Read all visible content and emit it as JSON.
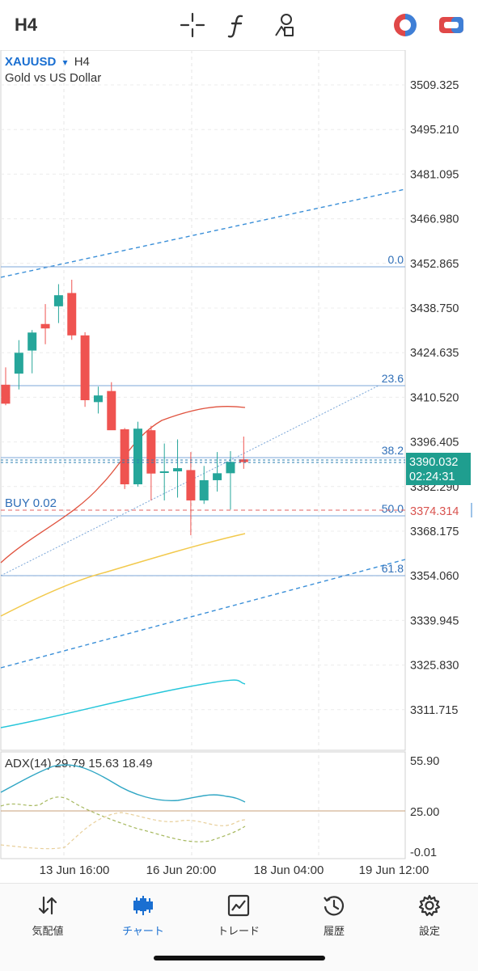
{
  "toolbar": {
    "timeframe": "H4",
    "icons": [
      "crosshair-icon",
      "function-icon",
      "drawing-tools-icon",
      "one-click-trading-icon",
      "toggle-icon"
    ]
  },
  "chart": {
    "symbol": "XAUUSD",
    "dropdown_glyph": "▾",
    "timeframe": "H4",
    "description": "Gold vs US Dollar",
    "price_axis": [
      "3509.325",
      "3495.210",
      "3481.095",
      "3466.980",
      "3452.865",
      "3438.750",
      "3424.635",
      "3410.520",
      "3396.405",
      "3382.290",
      "3368.175",
      "3354.060",
      "3339.945",
      "3325.830",
      "3311.715"
    ],
    "fibo_levels": [
      "0.0",
      "23.6",
      "38.2",
      "50.0",
      "61.8"
    ],
    "current_price": "3390.032",
    "countdown": "02:24:31",
    "order_label": "BUY 0.02",
    "order_price": "3374.314",
    "time_axis": [
      "13 Jun 16:00",
      "16 Jun 20:00",
      "18 Jun 04:00",
      "19 Jun 12:00"
    ],
    "colors": {
      "bull": "#26a69a",
      "bear": "#ef5350",
      "order": "#d9534f",
      "accent": "#1a6fd1"
    }
  },
  "adx": {
    "label": "ADX(14) 29.79 15.63 18.49",
    "axis": [
      "55.90",
      "25.00",
      "-0.01"
    ]
  },
  "chart_data": {
    "type": "candlestick",
    "timeframe": "H4",
    "ylim": [
      3300,
      3520
    ],
    "ohlc": [
      [
        3414.5,
        3420,
        3408,
        3408.5
      ],
      [
        3418,
        3428.6,
        3413,
        3424.6
      ],
      [
        3425.3,
        3431.8,
        3418.1,
        3431
      ],
      [
        3433.7,
        3440,
        3427.3,
        3432.3
      ],
      [
        3439.3,
        3446.3,
        3434,
        3442.8
      ],
      [
        3443.5,
        3447.7,
        3428.7,
        3430.1
      ],
      [
        3430.1,
        3431.1,
        3407.5,
        3409.6
      ],
      [
        3409,
        3413.9,
        3405.4,
        3411.1
      ],
      [
        3412.5,
        3415.3,
        3400.4,
        3400.1
      ],
      [
        3400.4,
        3400.8,
        3381.5,
        3383
      ],
      [
        3383,
        3402.8,
        3382.3,
        3400.6
      ],
      [
        3400.1,
        3401.5,
        3377.9,
        3386.4
      ],
      [
        3386.8,
        3395.9,
        3377.9,
        3387.1
      ],
      [
        3387.1,
        3397.2,
        3378.8,
        3388.1
      ],
      [
        3387.5,
        3393.2,
        3366.9,
        3377.9
      ],
      [
        3377.9,
        3388.8,
        3376.8,
        3384.3
      ],
      [
        3384.3,
        3393.2,
        3380.7,
        3386.5
      ],
      [
        3386.5,
        3393.5,
        3375,
        3390.1
      ],
      [
        3390.9,
        3398.1,
        3387.9,
        3390.03
      ]
    ],
    "adx_values": [
      42,
      48,
      53,
      55,
      54,
      50,
      45,
      40,
      36,
      31,
      30,
      29.5,
      29.5,
      30,
      31,
      32.5,
      31,
      31.5,
      29.79
    ]
  }
}
